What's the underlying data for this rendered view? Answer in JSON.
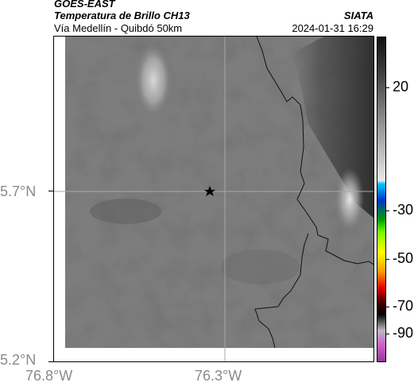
{
  "header": {
    "satellite": "GOES-EAST",
    "product": "Temperatura de Brillo CH13",
    "region": "Vía Medellín - Quibdó 50km",
    "agency": "SIATA",
    "datetime": "2024-01-31 16:29"
  },
  "axes": {
    "lat_labels": [
      "5.7°N",
      "5.2°N"
    ],
    "lon_labels": [
      "76.8°W",
      "76.3°W"
    ]
  },
  "colorbar": {
    "tick_labels": [
      "20",
      "-30",
      "-50",
      "-70",
      "-90"
    ]
  },
  "map": {
    "marker": "star-icon"
  }
}
